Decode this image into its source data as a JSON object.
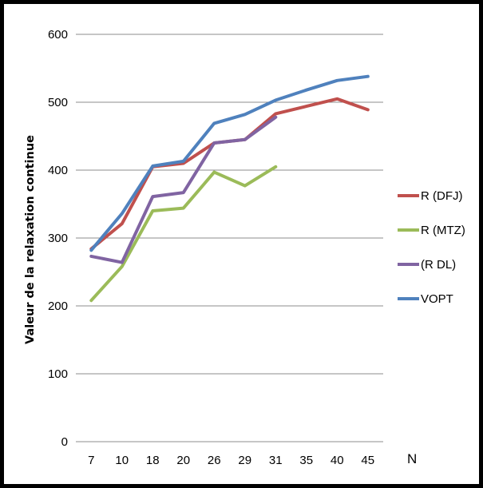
{
  "chart_data": {
    "type": "line",
    "categories": [
      "7",
      "10",
      "18",
      "20",
      "26",
      "29",
      "31",
      "35",
      "40",
      "45"
    ],
    "ylabel": "Valeur de la relaxation continue",
    "xlabel": "N",
    "ylim": [
      0,
      600
    ],
    "yticks": [
      0,
      100,
      200,
      300,
      400,
      500,
      600
    ],
    "grid": true,
    "legend_position": "right",
    "series": [
      {
        "name": "R (DFJ)",
        "color": "#c0504d",
        "values": [
          284,
          321,
          405,
          410,
          440,
          445,
          483,
          494,
          505,
          489
        ]
      },
      {
        "name": "R (MTZ)",
        "color": "#9bbb59",
        "values": [
          208,
          258,
          340,
          344,
          397,
          377,
          405,
          null,
          null,
          null
        ]
      },
      {
        "name": "(R DL)",
        "color": "#8064a2",
        "values": [
          273,
          264,
          361,
          367,
          440,
          445,
          478,
          null,
          null,
          null
        ]
      },
      {
        "name": "VOPT",
        "color": "#4f81bd",
        "values": [
          282,
          336,
          406,
          413,
          469,
          482,
          503,
          518,
          532,
          538
        ]
      }
    ]
  }
}
